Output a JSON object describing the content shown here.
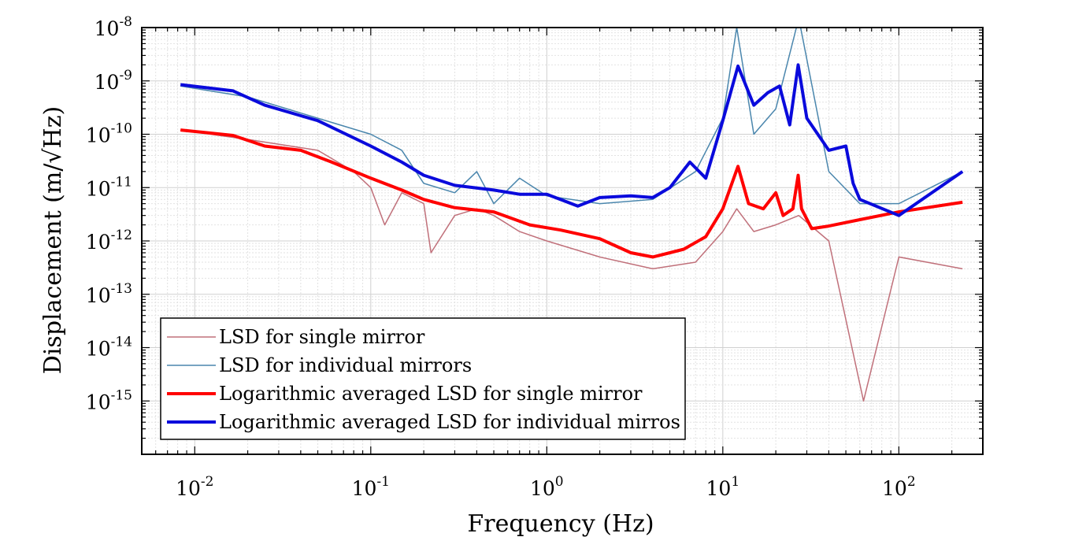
{
  "chart_data": {
    "type": "line",
    "title": "",
    "xlabel": "Frequency (Hz)",
    "ylabel": "Displacement (m/√Hz)",
    "xscale": "log",
    "yscale": "log",
    "xlim": [
      0.005,
      300
    ],
    "ylim": [
      1e-16,
      1e-08
    ],
    "grid": true,
    "legend_position": "bottom-left",
    "x_ticks": [
      {
        "value": 0.01,
        "base": "10",
        "exp": "-2"
      },
      {
        "value": 0.1,
        "base": "10",
        "exp": "-1"
      },
      {
        "value": 1,
        "base": "10",
        "exp": "0"
      },
      {
        "value": 10,
        "base": "10",
        "exp": "1"
      },
      {
        "value": 100,
        "base": "10",
        "exp": "2"
      }
    ],
    "y_ticks": [
      {
        "value": 1e-08,
        "base": "10",
        "exp": "-8"
      },
      {
        "value": 1e-09,
        "base": "10",
        "exp": "-9"
      },
      {
        "value": 1e-10,
        "base": "10",
        "exp": "-10"
      },
      {
        "value": 1e-11,
        "base": "10",
        "exp": "-11"
      },
      {
        "value": 1e-12,
        "base": "10",
        "exp": "-12"
      },
      {
        "value": 1e-13,
        "base": "10",
        "exp": "-13"
      },
      {
        "value": 1e-14,
        "base": "10",
        "exp": "-14"
      },
      {
        "value": 1e-15,
        "base": "10",
        "exp": "-15"
      }
    ],
    "series": [
      {
        "name": "LSD for single mirror",
        "color": "#c0707a",
        "width": 1.5,
        "x": [
          0.0083,
          0.02,
          0.05,
          0.08,
          0.1,
          0.12,
          0.15,
          0.2,
          0.22,
          0.3,
          0.4,
          0.5,
          0.7,
          1,
          2,
          4,
          7,
          10,
          12,
          15,
          20,
          27,
          40,
          63,
          100,
          230
        ],
        "y": [
          1.2e-10,
          8e-11,
          5e-11,
          2e-11,
          1e-11,
          2e-12,
          8e-12,
          5e-12,
          6e-13,
          3e-12,
          4e-12,
          3e-12,
          1.5e-12,
          1e-12,
          5e-13,
          3e-13,
          4e-13,
          1.5e-12,
          4e-12,
          1.5e-12,
          2e-12,
          3e-12,
          1e-12,
          1e-15,
          5e-13,
          3e-13
        ]
      },
      {
        "name": "LSD for individual mirrors",
        "color": "#4a86ad",
        "width": 1.5,
        "x": [
          0.0083,
          0.02,
          0.05,
          0.1,
          0.15,
          0.2,
          0.3,
          0.4,
          0.5,
          0.7,
          1,
          2,
          4,
          7,
          10,
          12,
          15,
          20,
          27,
          40,
          60,
          100,
          230
        ],
        "y": [
          8e-10,
          5e-10,
          2e-10,
          1e-10,
          5e-11,
          1.2e-11,
          8e-12,
          2e-11,
          5e-12,
          1.5e-11,
          7e-12,
          5e-12,
          6e-12,
          2e-11,
          2e-10,
          1e-08,
          1e-10,
          3e-10,
          1.5e-08,
          2e-11,
          5e-12,
          5e-12,
          2e-11
        ]
      },
      {
        "name": "Logarithmic averaged LSD for single mirror",
        "color": "#ff0000",
        "width": 4,
        "x": [
          0.0083,
          0.0165,
          0.025,
          0.04,
          0.06,
          0.1,
          0.15,
          0.2,
          0.3,
          0.5,
          0.8,
          1.2,
          2,
          3,
          4,
          5,
          6,
          8,
          10,
          12.2,
          14,
          17,
          20,
          22,
          25,
          26.8,
          28,
          32,
          40,
          60,
          100,
          230
        ],
        "y": [
          1.2e-10,
          9.5e-11,
          6e-11,
          5e-11,
          3e-11,
          1.5e-11,
          9e-12,
          6e-12,
          4.2e-12,
          3.5e-12,
          2e-12,
          1.6e-12,
          1.1e-12,
          6e-13,
          5e-13,
          6e-13,
          7e-13,
          1.2e-12,
          4e-12,
          2.5e-11,
          5e-12,
          4e-12,
          8e-12,
          3e-12,
          4e-12,
          1.7e-11,
          4e-12,
          1.7e-12,
          1.9e-12,
          2.5e-12,
          3.5e-12,
          5.3e-12
        ]
      },
      {
        "name": "Logarithmic averaged LSD for individual mirros",
        "color": "#0a0adc",
        "width": 4,
        "x": [
          0.0083,
          0.0165,
          0.025,
          0.05,
          0.1,
          0.15,
          0.2,
          0.3,
          0.5,
          0.7,
          1,
          1.5,
          2,
          3,
          4,
          5,
          6.5,
          8,
          10,
          12.2,
          15,
          18,
          21,
          24,
          26.8,
          30,
          40,
          50,
          55,
          60,
          100,
          230
        ],
        "y": [
          8.5e-10,
          6.5e-10,
          3.5e-10,
          1.8e-10,
          6e-11,
          3e-11,
          1.7e-11,
          1.1e-11,
          9e-12,
          7.5e-12,
          7.5e-12,
          4.5e-12,
          6.5e-12,
          7e-12,
          6.5e-12,
          1e-11,
          3e-11,
          1.5e-11,
          1.8e-10,
          1.9e-09,
          3.5e-10,
          6e-10,
          8e-10,
          1.5e-10,
          2e-09,
          2e-10,
          5e-11,
          6e-11,
          1.2e-11,
          6e-12,
          3e-12,
          2e-11
        ]
      }
    ]
  }
}
